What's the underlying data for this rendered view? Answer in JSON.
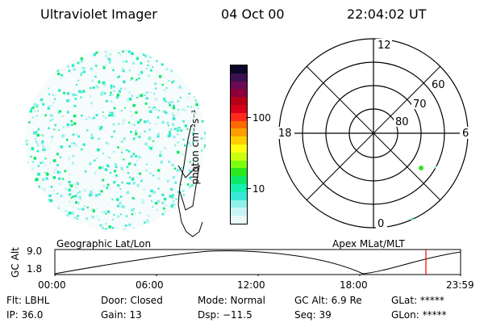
{
  "header": {
    "instrument": "Ultraviolet Imager",
    "date": "04 Oct 00",
    "time": "22:04:02 UT"
  },
  "colorbar": {
    "unit": "photon cm⁻²s⁻¹",
    "ticks": [
      "100",
      "10"
    ],
    "colors": [
      "#0b0726",
      "#3a1050",
      "#6a0a52",
      "#8c003a",
      "#b40018",
      "#d8001a",
      "#ff2a1e",
      "#ff6a00",
      "#ff9e00",
      "#ffd000",
      "#ffff10",
      "#caff10",
      "#7cff10",
      "#2ce81c",
      "#10e86a",
      "#18f0b0",
      "#38e8d4",
      "#8ff0ea",
      "#c8f4f4",
      "#eaf8f8"
    ]
  },
  "polar": {
    "mlt_labels": {
      "top": "12",
      "left": "18",
      "right": "6",
      "bottom": "0"
    },
    "lat_labels": [
      "60",
      "70",
      "80"
    ]
  },
  "timeline": {
    "left_title": "Geographic Lat/Lon",
    "right_title": "Apex MLat/MLT",
    "y_label": "GC Alt",
    "y_ticks": [
      "9.0",
      "1.8"
    ],
    "x_ticks": [
      "00:00",
      "06:00",
      "12:00",
      "18:00",
      "23:59"
    ],
    "marker_color": "#ff0000"
  },
  "info": {
    "filter": "Flt: LBHL",
    "ip": "IP: 36.0",
    "door": "Door: Closed",
    "gain": "Gain: 13",
    "mode": "Mode: Normal",
    "dsp": "Dsp:  −11.5",
    "gc_alt": "GC Alt: 6.9 Re",
    "seq": "Seq: 39",
    "glat": "GLat: *****",
    "glon": "GLon: *****"
  }
}
